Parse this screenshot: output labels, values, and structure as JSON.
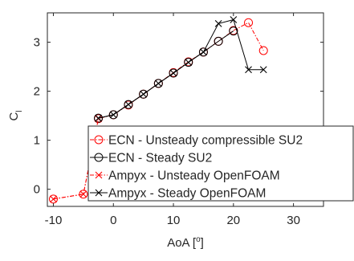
{
  "chart_data": {
    "type": "line",
    "xlabel": "AoA [",
    "xlabel_sup": "o",
    "xlabel_end": "]",
    "ylabel": "C",
    "ylabel_sub": "l",
    "xlim": [
      -11,
      35
    ],
    "ylim": [
      -0.35,
      3.6
    ],
    "xticks": [
      -10,
      0,
      10,
      20,
      30
    ],
    "yticks": [
      0,
      1,
      2,
      3
    ],
    "grid": false,
    "legend_position": "bottom-right",
    "series": [
      {
        "name": "ECN - Unsteady compressible SU2",
        "color": "#ff0000",
        "line_style": "dash-dot",
        "marker": "circle",
        "x": [
          -10,
          -5,
          -2.5,
          0,
          2.5,
          5,
          7.5,
          10,
          12.5,
          15,
          17.5,
          20,
          22.5,
          25
        ],
        "y": [
          -0.2,
          -0.1,
          1.44,
          1.52,
          1.72,
          1.94,
          2.16,
          2.38,
          2.6,
          2.8,
          3.02,
          3.24,
          3.4,
          2.83
        ]
      },
      {
        "name": "ECN - Steady SU2",
        "color": "#000000",
        "line_style": "solid",
        "marker": "circle",
        "x": [
          -2.5,
          0,
          2.5,
          5,
          7.5,
          10,
          12.5,
          15,
          17.5,
          20
        ],
        "y": [
          1.45,
          1.52,
          1.73,
          1.94,
          2.16,
          2.37,
          2.59,
          2.8,
          3.02,
          3.23
        ]
      },
      {
        "name": "Ampyx - Unsteady OpenFOAM",
        "color": "#ff0000",
        "line_style": "dash-dot",
        "marker": "x",
        "x": [
          -10,
          -5,
          -2.5
        ],
        "y": [
          -0.2,
          -0.1,
          1.44
        ]
      },
      {
        "name": "Ampyx - Steady OpenFOAM",
        "color": "#000000",
        "line_style": "solid",
        "marker": "x",
        "x": [
          -2.5,
          0,
          2.5,
          5,
          7.5,
          10,
          12.5,
          15,
          17.5,
          20,
          22.5,
          25
        ],
        "y": [
          1.45,
          1.52,
          1.73,
          1.94,
          2.16,
          2.37,
          2.59,
          2.8,
          3.38,
          3.46,
          2.44,
          2.44
        ]
      }
    ]
  }
}
